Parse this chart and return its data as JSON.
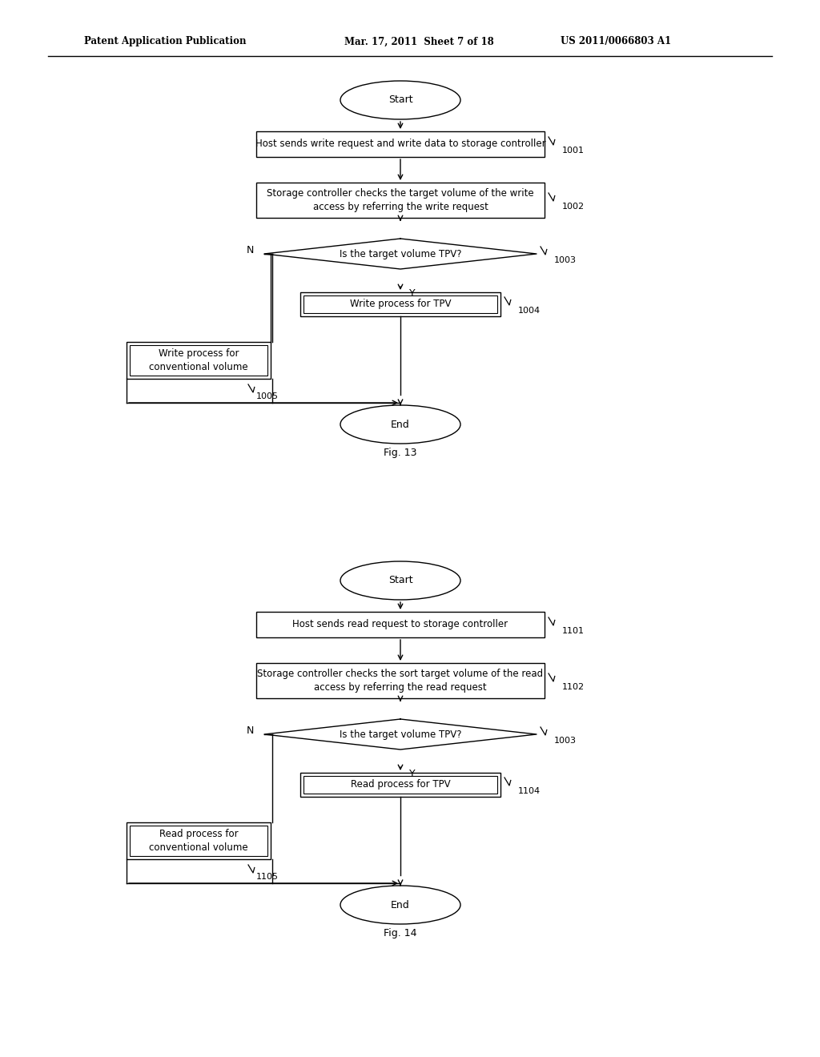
{
  "bg_color": "#ffffff",
  "header_left": "Patent Application Publication",
  "header_mid": "Mar. 17, 2011  Sheet 7 of 18",
  "header_right": "US 2011/0066803 A1",
  "fig13_label": "Fig. 13",
  "fig14_label": "Fig. 14",
  "fc1": {
    "start_text": "Start",
    "end_text": "End",
    "box1_text": "Host sends write request and write data to storage controller",
    "box1_label": "1001",
    "box2_text": "Storage controller checks the target volume of the write\naccess by referring the write request",
    "box2_label": "1002",
    "diamond_text": "Is the target volume TPV?",
    "diamond_label": "1003",
    "box4_text": "Write process for TPV",
    "box4_label": "1004",
    "box5_text": "Write process for\nconventional volume",
    "box5_label": "1005",
    "n_label": "N",
    "y_label": "Y"
  },
  "fc2": {
    "start_text": "Start",
    "end_text": "End",
    "box1_text": "Host sends read request to storage controller",
    "box1_label": "1101",
    "box2_text": "Storage controller checks the sort target volume of the read\naccess by referring the read request",
    "box2_label": "1102",
    "diamond_text": "Is the target volume TPV?",
    "diamond_label": "1003",
    "box4_text": "Read process for TPV",
    "box4_label": "1104",
    "box5_text": "Read process for\nconventional volume",
    "box5_label": "1105",
    "n_label": "N",
    "y_label": "Y"
  }
}
